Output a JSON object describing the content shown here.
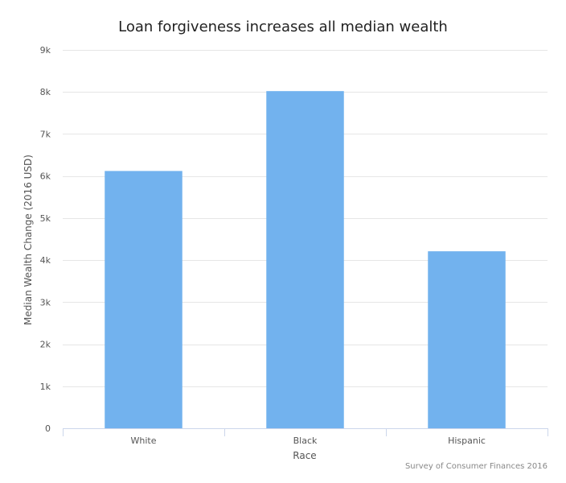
{
  "chart_data": {
    "type": "bar",
    "title": "Loan forgiveness increases all median wealth",
    "xlabel": "Race",
    "ylabel": "Median Wealth Change (2016 USD)",
    "categories": [
      "White",
      "Black",
      "Hispanic"
    ],
    "values": [
      6120,
      8020,
      4210
    ],
    "ylim": [
      0,
      9000
    ],
    "yticks": [
      0,
      1000,
      2000,
      3000,
      4000,
      5000,
      6000,
      7000,
      8000,
      9000
    ],
    "ytick_labels": [
      "0",
      "1k",
      "2k",
      "3k",
      "4k",
      "5k",
      "6k",
      "7k",
      "8k",
      "9k"
    ],
    "grid": true,
    "legend": "none",
    "bar_color": "#72b2ee",
    "gridline_color": "#e6e6e6",
    "axis_color": "#ccd6eb",
    "credit": "Survey of Consumer Finances 2016"
  }
}
